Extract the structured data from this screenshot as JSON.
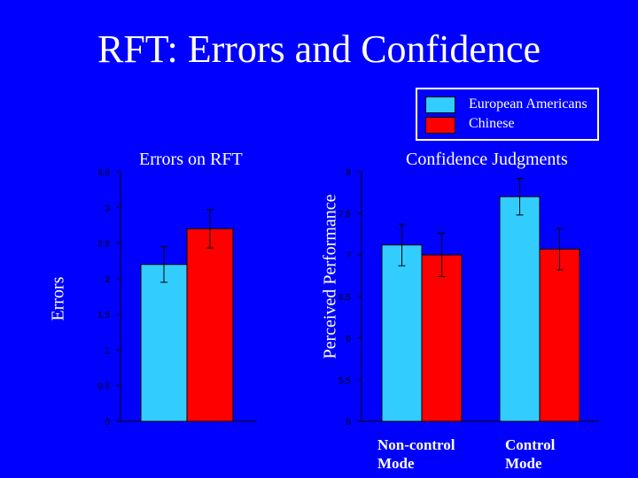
{
  "page": {
    "title": "RFT: Errors and Confidence"
  },
  "legend": {
    "items": [
      {
        "label": "European Americans",
        "color": "#33ccff"
      },
      {
        "label": "Chinese",
        "color": "#ff0000"
      }
    ]
  },
  "colors": {
    "background": "#0000ff",
    "text": "#ffffff",
    "axis": "#000000"
  },
  "chart_data": [
    {
      "type": "bar",
      "title": "Errors on RFT",
      "ylabel": "Errors",
      "xlabel": "",
      "ylim": [
        0,
        3.5
      ],
      "yticks": [
        "0",
        "0.5",
        "1",
        "1.5",
        "2",
        "2.5",
        "3",
        "3.5"
      ],
      "categories": [
        ""
      ],
      "series": [
        {
          "name": "European Americans",
          "color": "#33ccff",
          "values": [
            2.2
          ],
          "errors": [
            0.25
          ]
        },
        {
          "name": "Chinese",
          "color": "#ff0000",
          "values": [
            2.7
          ],
          "errors": [
            0.27
          ]
        }
      ]
    },
    {
      "type": "bar",
      "title": "Confidence Judgments",
      "ylabel": "Perceived Performance",
      "xlabel": "",
      "ylim": [
        5,
        8
      ],
      "yticks": [
        "5",
        "5.5",
        "6",
        "6.5",
        "7",
        "7.5",
        "8"
      ],
      "categories": [
        "Non-control Mode",
        "Control Mode"
      ],
      "category_lines": [
        [
          "Non-control",
          "Mode"
        ],
        [
          "Control",
          "Mode"
        ]
      ],
      "series": [
        {
          "name": "European Americans",
          "color": "#33ccff",
          "values": [
            7.12,
            7.7
          ],
          "errors": [
            0.25,
            0.22
          ]
        },
        {
          "name": "Chinese",
          "color": "#ff0000",
          "values": [
            7.0,
            7.07
          ],
          "errors": [
            0.26,
            0.25
          ]
        }
      ]
    }
  ]
}
